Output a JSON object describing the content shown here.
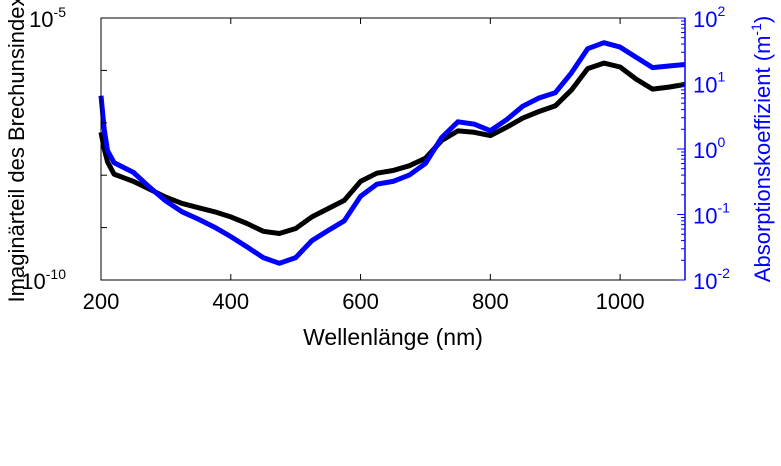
{
  "chart_data": {
    "type": "line",
    "xlabel": "Wellenlänge (nm)",
    "xlim": [
      200,
      1100
    ],
    "x_ticks": [
      "200",
      "400",
      "600",
      "800",
      "1000"
    ],
    "x_tick_values": [
      200,
      400,
      600,
      800,
      1000
    ],
    "left_axis": {
      "label": "Imaginärteil des Brechunsindex",
      "scale": "log",
      "ylim": [
        1e-10,
        1e-05
      ],
      "ticks": [
        {
          "value": 1e-05,
          "base": "10",
          "exp": "-5"
        },
        {
          "value": 1e-10,
          "base": "10",
          "exp": "-10"
        }
      ],
      "color": "#000000"
    },
    "right_axis": {
      "label_main": "Absorptionskoeffizient (m",
      "label_exp": "-1",
      "label_end": ")",
      "scale": "log",
      "ylim": [
        0.01,
        100
      ],
      "ticks": [
        {
          "value": 100,
          "base": "10",
          "exp": "2"
        },
        {
          "value": 10,
          "base": "10",
          "exp": "1"
        },
        {
          "value": 1,
          "base": "10",
          "exp": "0"
        },
        {
          "value": 0.1,
          "base": "10",
          "exp": "-1"
        },
        {
          "value": 0.01,
          "base": "10",
          "exp": "-2"
        }
      ],
      "color": "#0000ff"
    },
    "series": [
      {
        "axis": "left",
        "color": "#000000",
        "x": [
          200,
          205,
          210,
          220,
          250,
          275,
          300,
          325,
          350,
          375,
          400,
          425,
          450,
          475,
          500,
          525,
          550,
          575,
          600,
          625,
          650,
          675,
          700,
          725,
          750,
          775,
          800,
          825,
          850,
          875,
          900,
          925,
          950,
          975,
          1000,
          1025,
          1050,
          1075,
          1100
        ],
        "y": [
          6.6e-08,
          3.2e-08,
          1.8e-08,
          1.05e-08,
          7.6e-09,
          5.4e-09,
          3.8e-09,
          2.9e-09,
          2.4e-09,
          2e-09,
          1.6e-09,
          1.2e-09,
          8.5e-10,
          7.7e-10,
          9.6e-10,
          1.6e-09,
          2.3e-09,
          3.3e-09,
          7.6e-09,
          1.09e-08,
          1.23e-08,
          1.51e-08,
          2.1e-08,
          4.6e-08,
          7e-08,
          6.6e-08,
          5.7e-08,
          8.2e-08,
          1.23e-07,
          1.64e-07,
          2.1e-07,
          4.2e-07,
          1.08e-06,
          1.38e-06,
          1.16e-06,
          6.8e-07,
          4.4e-07,
          4.8e-07,
          5.4e-07
        ]
      },
      {
        "axis": "right",
        "color": "#0000ff",
        "x": [
          200,
          205,
          210,
          220,
          250,
          275,
          300,
          325,
          350,
          375,
          400,
          425,
          450,
          475,
          500,
          525,
          550,
          575,
          600,
          625,
          650,
          675,
          700,
          725,
          750,
          775,
          800,
          825,
          850,
          875,
          900,
          925,
          950,
          975,
          1000,
          1025,
          1050,
          1075,
          1100
        ],
        "y": [
          6.5,
          2.0,
          0.95,
          0.62,
          0.44,
          0.26,
          0.16,
          0.11,
          0.085,
          0.064,
          0.046,
          0.032,
          0.022,
          0.018,
          0.022,
          0.04,
          0.057,
          0.08,
          0.19,
          0.29,
          0.32,
          0.4,
          0.6,
          1.5,
          2.6,
          2.4,
          1.9,
          2.8,
          4.5,
          6.0,
          7.2,
          14.5,
          34.0,
          42.0,
          36.0,
          25.0,
          17.5,
          18.5,
          19.5
        ]
      }
    ],
    "grid": false,
    "legend": "none"
  }
}
